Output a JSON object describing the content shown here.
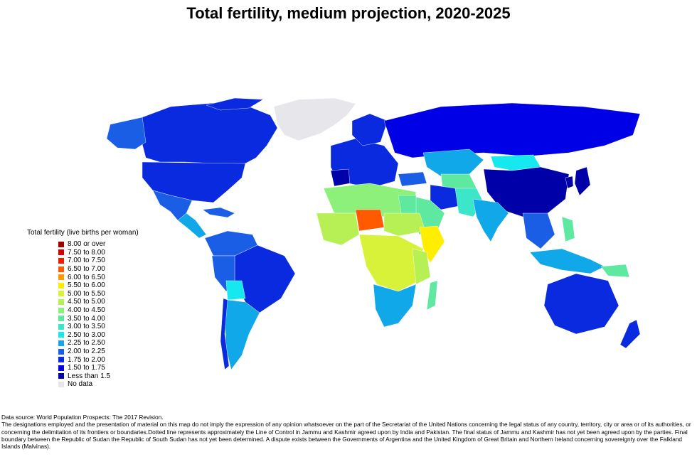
{
  "title": "Total fertility, medium projection, 2020-2025",
  "legend": {
    "title": "Total fertility (live births per woman)",
    "items": [
      {
        "label": "8.00 or over",
        "color": "#a00000"
      },
      {
        "label": "7.50 to 8.00",
        "color": "#d40000"
      },
      {
        "label": "7.00 to 7.50",
        "color": "#f01c00"
      },
      {
        "label": "6.50 to 7.00",
        "color": "#ff5a00"
      },
      {
        "label": "6.00 to 6.50",
        "color": "#ff9a00"
      },
      {
        "label": "5.50 to 6.00",
        "color": "#ffee00"
      },
      {
        "label": "5.00 to 5.50",
        "color": "#d8f23a"
      },
      {
        "label": "4.50 to 5.00",
        "color": "#b6f054"
      },
      {
        "label": "4.00 to 4.50",
        "color": "#8cf07a"
      },
      {
        "label": "3.50 to 4.00",
        "color": "#5ee8a0"
      },
      {
        "label": "3.00 to 3.50",
        "color": "#3ce6c8"
      },
      {
        "label": "2.50 to 3.00",
        "color": "#16e8f0"
      },
      {
        "label": "2.25 to 2.50",
        "color": "#10a8e8"
      },
      {
        "label": "2.00 to 2.25",
        "color": "#1a5ee6"
      },
      {
        "label": "1.75 to 2.00",
        "color": "#0a2ae0"
      },
      {
        "label": "1.50 to 1.75",
        "color": "#0000e6"
      },
      {
        "label": "Less than 1.5",
        "color": "#0000a8"
      },
      {
        "label": "No data",
        "color": "#e6e6eb"
      }
    ]
  },
  "footer": {
    "source": "Data source: World Population Prospects: The 2017 Revision.",
    "disclaimer": "The designations employed and the presentation of material on this map do not imply the expression of any opinion whatsoever on the part of the Secretariat of the United Nations concerning the legal status of any country, territory, city or area or of its authorities, or concerning the delimitation of its frontiers or boundaries.Dotted line represents approximately the Line of Control in Jammu and Kashmir agreed upon by India and Pakistan. The final status of Jammu and Kashmir has not yet been agreed upon by the parties. Final boundary between the Republic of Sudan the Republic of South Sudan has not yet been determined. A dispute exists between the Governments of Argentina and the United Kingdom of Great Britain and Northern Ireland concerning sovereignty over the Falkland Islands (Malvinas)."
  }
}
